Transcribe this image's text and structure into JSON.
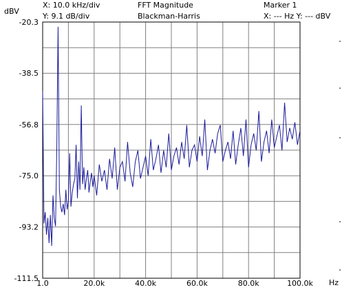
{
  "header": {
    "y_unit": "dBV",
    "x_scale": "X: 10.0 kHz/div",
    "y_scale": "Y: 9.1 dB/div",
    "title": "FFT Magnitude",
    "window": "Blackman-Harris",
    "marker_title": "Marker 1",
    "marker_readout": "X: --- Hz Y: --- dBV"
  },
  "colors": {
    "trace": "#1a1a9a",
    "grid": "#808080",
    "plot_border": "#000000",
    "background": "#ffffff"
  },
  "chart_data": {
    "type": "line",
    "title": "FFT Magnitude",
    "subtitle": "Blackman-Harris",
    "xlabel": "Hz",
    "ylabel": "dBV",
    "xlim": [
      1.0,
      100000
    ],
    "ylim": [
      -111.5,
      -20.3
    ],
    "x_ticks": [
      1.0,
      20000,
      40000,
      60000,
      80000,
      100000
    ],
    "x_tick_labels": [
      "1.0",
      "20.0k",
      "40.0k",
      "60.0k",
      "80.0k",
      "100.0k"
    ],
    "y_ticks": [
      -20.3,
      -38.5,
      -56.8,
      -75.0,
      -93.2,
      -111.5
    ],
    "y_tick_labels": [
      "-20.3",
      "-38.5",
      "-56.8",
      "-75.0",
      "-93.2",
      "-111.5"
    ],
    "grid": true,
    "series": [
      {
        "x": [
          0,
          500,
          1000,
          1500,
          2000,
          2500,
          3000,
          3500,
          4000,
          4500,
          5000,
          5500,
          6000,
          6500,
          7000,
          7500,
          8000,
          8500,
          9000,
          9500,
          10000,
          10500,
          11000,
          11500,
          12000,
          12500,
          13000,
          13500,
          14000,
          14500,
          15000,
          15500,
          16000,
          16500,
          17000,
          17500,
          18000,
          18500,
          19000,
          19500,
          20000,
          21000,
          22000,
          23000,
          24000,
          25000,
          26000,
          27000,
          28000,
          29000,
          30000,
          31000,
          32000,
          33000,
          34000,
          35000,
          36000,
          37000,
          38000,
          39000,
          40000,
          41000,
          42000,
          43000,
          44000,
          45000,
          46000,
          47000,
          48000,
          49000,
          50000,
          51000,
          52000,
          53000,
          54000,
          55000,
          56000,
          57000,
          58000,
          59000,
          60000,
          61000,
          62000,
          63000,
          64000,
          65000,
          66000,
          67000,
          68000,
          69000,
          70000,
          71000,
          72000,
          73000,
          74000,
          75000,
          76000,
          77000,
          78000,
          79000,
          80000,
          81000,
          82000,
          83000,
          84000,
          85000,
          86000,
          87000,
          88000,
          89000,
          90000,
          91000,
          92000,
          93000,
          94000,
          95000,
          96000,
          97000,
          98000,
          99000,
          100000
        ],
        "values": [
          -45.0,
          -92.0,
          -88.0,
          -96.0,
          -90.0,
          -99.0,
          -89.0,
          -100.0,
          -82.0,
          -90.0,
          -93.0,
          -64.0,
          -22.0,
          -80.0,
          -86.0,
          -88.0,
          -85.0,
          -89.0,
          -80.0,
          -87.0,
          -84.0,
          -67.0,
          -86.0,
          -81.0,
          -78.0,
          -76.0,
          -64.0,
          -83.0,
          -70.0,
          -80.0,
          -50.0,
          -78.0,
          -72.0,
          -80.0,
          -76.0,
          -73.0,
          -81.0,
          -77.0,
          -74.0,
          -79.0,
          -75.0,
          -82.0,
          -71.0,
          -77.0,
          -73.0,
          -80.0,
          -69.0,
          -76.0,
          -65.0,
          -80.0,
          -72.0,
          -70.0,
          -77.0,
          -63.0,
          -74.0,
          -79.0,
          -70.0,
          -66.0,
          -76.0,
          -72.0,
          -68.0,
          -75.0,
          -62.0,
          -73.0,
          -69.0,
          -64.0,
          -74.0,
          -66.0,
          -72.0,
          -60.0,
          -73.0,
          -68.0,
          -65.0,
          -71.0,
          -63.0,
          -69.0,
          -57.0,
          -72.0,
          -66.0,
          -64.0,
          -70.0,
          -61.0,
          -68.0,
          -55.0,
          -73.0,
          -66.0,
          -62.0,
          -67.0,
          -60.0,
          -57.0,
          -70.0,
          -66.0,
          -63.0,
          -69.0,
          -59.0,
          -71.0,
          -64.0,
          -58.0,
          -68.0,
          -55.0,
          -72.0,
          -64.0,
          -60.0,
          -66.0,
          -52.0,
          -70.0,
          -63.0,
          -59.0,
          -67.0,
          -55.0,
          -65.0,
          -61.0,
          -57.0,
          -66.0,
          -49.0,
          -63.0,
          -58.0,
          -62.0,
          -56.0,
          -64.0,
          -59.0
        ]
      }
    ]
  }
}
